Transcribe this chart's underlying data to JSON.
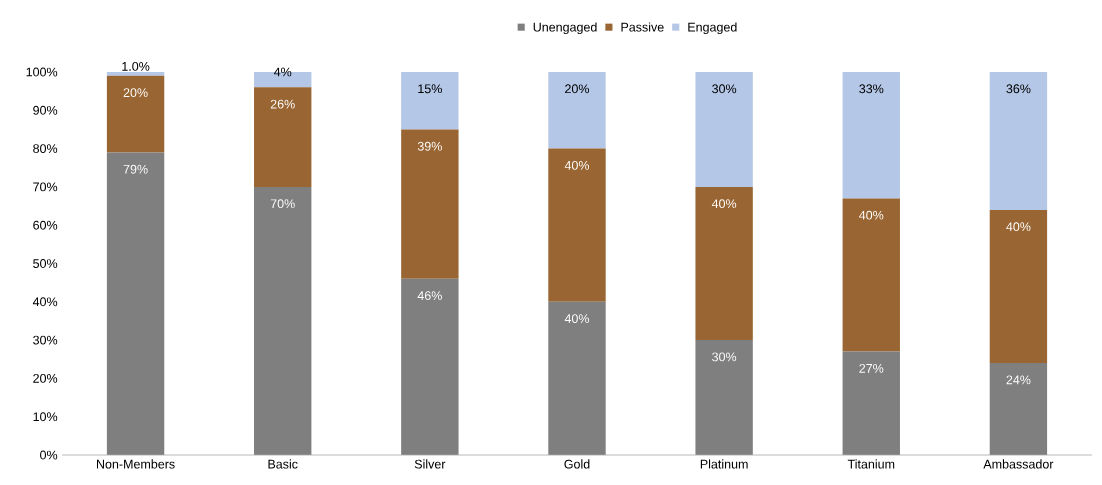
{
  "chart_data": {
    "type": "bar",
    "stacked": true,
    "legend": "top",
    "categories": [
      "Non-Members",
      "Basic",
      "Silver",
      "Gold",
      "Platinum",
      "Titanium",
      "Ambassador"
    ],
    "series": [
      {
        "name": "Unengaged",
        "color": "#7f7f7f",
        "values": [
          79,
          70,
          46,
          40,
          30,
          27,
          24
        ],
        "value_labels": [
          "79%",
          "70%",
          "46%",
          "40%",
          "30%",
          "27%",
          "24%"
        ]
      },
      {
        "name": "Passive",
        "color": "#996633",
        "values": [
          20,
          26,
          39,
          40,
          40,
          40,
          40
        ],
        "value_labels": [
          "20%",
          "26%",
          "39%",
          "40%",
          "40%",
          "40%",
          "40%"
        ]
      },
      {
        "name": "Engaged",
        "color": "#b4c7e7",
        "values": [
          1.0,
          4,
          15,
          20,
          30,
          33,
          36
        ],
        "value_labels": [
          "1.0%",
          "4%",
          "15%",
          "20%",
          "30%",
          "33%",
          "36%"
        ]
      }
    ],
    "ylim": [
      0,
      100
    ],
    "yticks": [
      {
        "value": 0,
        "label": "0%"
      },
      {
        "value": 10,
        "label": "10%"
      },
      {
        "value": 20,
        "label": "20%"
      },
      {
        "value": 30,
        "label": "30%"
      },
      {
        "value": 40,
        "label": "40%"
      },
      {
        "value": 50,
        "label": "50%"
      },
      {
        "value": 60,
        "label": "60%"
      },
      {
        "value": 70,
        "label": "70%"
      },
      {
        "value": 80,
        "label": "80%"
      },
      {
        "value": 90,
        "label": "90%"
      },
      {
        "value": 100,
        "label": "100%"
      }
    ]
  }
}
